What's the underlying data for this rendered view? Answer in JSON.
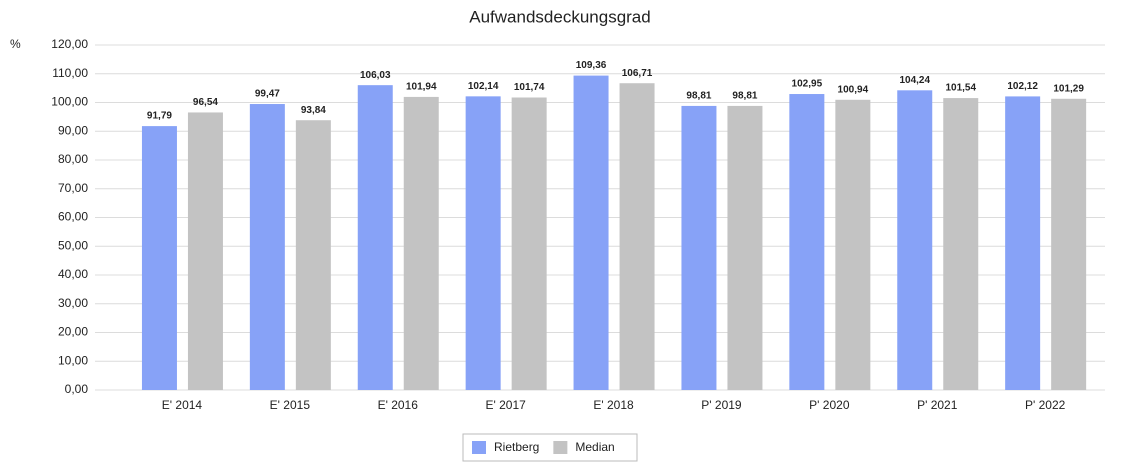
{
  "chart_data": {
    "type": "bar",
    "title": "Aufwandsdeckungsgrad",
    "ylabel": "%",
    "categories": [
      "E' 2014",
      "E' 2015",
      "E' 2016",
      "E' 2017",
      "E' 2018",
      "P' 2019",
      "P' 2020",
      "P' 2021",
      "P' 2022"
    ],
    "series": [
      {
        "name": "Rietberg",
        "color": "#87a2f7",
        "values": [
          91.79,
          99.47,
          106.03,
          102.14,
          109.36,
          98.81,
          102.95,
          104.24,
          102.12
        ],
        "value_labels": [
          "91,79",
          "99,47",
          "106,03",
          "102,14",
          "109,36",
          "98,81",
          "102,95",
          "104,24",
          "102,12"
        ]
      },
      {
        "name": "Median",
        "color": "#c3c3c3",
        "values": [
          96.54,
          93.84,
          101.94,
          101.74,
          106.71,
          98.81,
          100.94,
          101.54,
          101.29
        ],
        "value_labels": [
          "96,54",
          "93,84",
          "101,94",
          "101,74",
          "106,71",
          "98,81",
          "100,94",
          "101,54",
          "101,29"
        ]
      }
    ],
    "ylim": [
      0,
      120
    ],
    "yticks": [
      {
        "value": 0,
        "label": "0,00"
      },
      {
        "value": 10,
        "label": "10,00"
      },
      {
        "value": 20,
        "label": "20,00"
      },
      {
        "value": 30,
        "label": "30,00"
      },
      {
        "value": 40,
        "label": "40,00"
      },
      {
        "value": 50,
        "label": "50,00"
      },
      {
        "value": 60,
        "label": "60,00"
      },
      {
        "value": 70,
        "label": "70,00"
      },
      {
        "value": 80,
        "label": "80,00"
      },
      {
        "value": 90,
        "label": "90,00"
      },
      {
        "value": 100,
        "label": "100,00"
      },
      {
        "value": 110,
        "label": "110,00"
      },
      {
        "value": 120,
        "label": "120,00"
      }
    ],
    "grid": true,
    "legend": "bottom"
  }
}
